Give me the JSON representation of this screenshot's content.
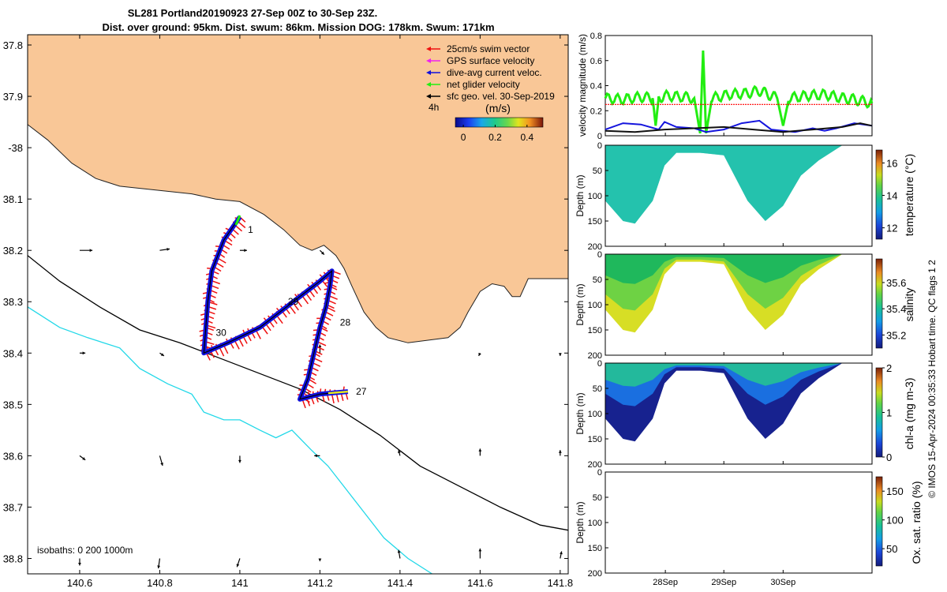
{
  "title": {
    "line1": "SL281 Portland20190923 27-Sep 00Z to 30-Sep 23Z.",
    "line2": "Dist. over ground: 95km. Dist. swum: 86km. Mission DOG: 178km. Swum: 171km"
  },
  "copyright": "© IMOS 15-Apr-2024 00:35:33 Hobart time. QC flags 1  2",
  "colors": {
    "land": "#f9c797",
    "coast": "#222222",
    "isobath_200": "#000000",
    "isobath_1000": "#22d8e8",
    "glider_red": "#ee1111",
    "glider_blue": "#1010dd",
    "glider_green": "#22ee11",
    "vmag_black": "#111111",
    "vmag_blue": "#1515dd",
    "vmag_red": "#ff0000"
  },
  "chart_data": [
    {
      "type": "map",
      "name": "glider track map",
      "xlim": [
        140.47,
        141.82
      ],
      "ylim": [
        -38.83,
        -37.78
      ],
      "yaxis_reversed_labels": true,
      "xticks": [
        140.6,
        140.8,
        141,
        141.2,
        141.4,
        141.6,
        141.8
      ],
      "xtick_labels": [
        "140.6",
        "140.8",
        "141",
        "141.2",
        "141.4",
        "141.6",
        "141.8"
      ],
      "yticks": [
        -37.8,
        -37.9,
        -38,
        -38.1,
        -38.2,
        -38.3,
        -38.4,
        -38.5,
        -38.6,
        -38.7,
        -38.8
      ],
      "ytick_labels": [
        "37.8",
        "37.9",
        "-38",
        "38.1",
        "38.2",
        "38.3",
        "38.4",
        "38.5",
        "38.6",
        "38.7",
        "38.8"
      ],
      "legend": {
        "position": "top-right",
        "items": [
          {
            "label": "25cm/s swim vector",
            "color": "#ee1111"
          },
          {
            "label": "GPS surface velocity",
            "color": "#ee22ee"
          },
          {
            "label": "dive-avg current veloc.",
            "color": "#1010dd"
          },
          {
            "label": "net glider velocity",
            "color": "#22ee11"
          },
          {
            "label": "sfc geo. vel. 30-Sep-2019",
            "color": "#000000"
          }
        ],
        "time_label": "4h",
        "colorbar_title": "(m/s)",
        "colorbar_ticks": [
          "0",
          "0.2",
          "0.4"
        ],
        "colorbar_range": [
          -0.05,
          0.5
        ]
      },
      "isobath_label": "isobaths: 0   200  1000m",
      "coastline": [
        [
          140.47,
          -37.955
        ],
        [
          140.52,
          -37.985
        ],
        [
          140.58,
          -38.03
        ],
        [
          140.64,
          -38.06
        ],
        [
          140.7,
          -38.075
        ],
        [
          140.76,
          -38.08
        ],
        [
          140.82,
          -38.085
        ],
        [
          140.88,
          -38.09
        ],
        [
          140.94,
          -38.1
        ],
        [
          141.0,
          -38.105
        ],
        [
          141.06,
          -38.13
        ],
        [
          141.11,
          -38.16
        ],
        [
          141.15,
          -38.19
        ],
        [
          141.18,
          -38.2
        ],
        [
          141.21,
          -38.19
        ],
        [
          141.24,
          -38.21
        ],
        [
          141.26,
          -38.235
        ],
        [
          141.28,
          -38.27
        ],
        [
          141.31,
          -38.32
        ],
        [
          141.34,
          -38.35
        ],
        [
          141.37,
          -38.37
        ],
        [
          141.42,
          -38.38
        ],
        [
          141.47,
          -38.375
        ],
        [
          141.52,
          -38.37
        ],
        [
          141.55,
          -38.35
        ],
        [
          141.57,
          -38.32
        ],
        [
          141.6,
          -38.28
        ],
        [
          141.63,
          -38.265
        ],
        [
          141.66,
          -38.27
        ],
        [
          141.68,
          -38.29
        ],
        [
          141.7,
          -38.29
        ],
        [
          141.72,
          -38.255
        ],
        [
          141.8,
          -38.255
        ],
        [
          141.82,
          -38.255
        ]
      ],
      "isobath_200": [
        [
          140.47,
          -38.21
        ],
        [
          140.55,
          -38.26
        ],
        [
          140.65,
          -38.31
        ],
        [
          140.75,
          -38.355
        ],
        [
          140.85,
          -38.38
        ],
        [
          140.95,
          -38.41
        ],
        [
          141.05,
          -38.44
        ],
        [
          141.15,
          -38.47
        ],
        [
          141.25,
          -38.51
        ],
        [
          141.35,
          -38.56
        ],
        [
          141.45,
          -38.62
        ],
        [
          141.55,
          -38.66
        ],
        [
          141.65,
          -38.7
        ],
        [
          141.75,
          -38.735
        ],
        [
          141.82,
          -38.745
        ]
      ],
      "isobath_1000": [
        [
          140.47,
          -38.31
        ],
        [
          140.55,
          -38.35
        ],
        [
          140.62,
          -38.37
        ],
        [
          140.7,
          -38.39
        ],
        [
          140.75,
          -38.43
        ],
        [
          140.82,
          -38.46
        ],
        [
          140.88,
          -38.48
        ],
        [
          140.91,
          -38.515
        ],
        [
          140.96,
          -38.53
        ],
        [
          141.0,
          -38.53
        ],
        [
          141.05,
          -38.55
        ],
        [
          141.09,
          -38.565
        ],
        [
          141.13,
          -38.55
        ],
        [
          141.18,
          -38.59
        ],
        [
          141.22,
          -38.62
        ],
        [
          141.26,
          -38.66
        ],
        [
          141.31,
          -38.71
        ],
        [
          141.36,
          -38.76
        ],
        [
          141.42,
          -38.8
        ],
        [
          141.48,
          -38.83
        ]
      ],
      "glider_track": [
        [
          141.0,
          -38.135
        ],
        [
          140.96,
          -38.18
        ],
        [
          140.93,
          -38.24
        ],
        [
          140.92,
          -38.3
        ],
        [
          140.915,
          -38.35
        ],
        [
          140.91,
          -38.4
        ],
        [
          140.97,
          -38.38
        ],
        [
          141.05,
          -38.35
        ],
        [
          141.1,
          -38.32
        ],
        [
          141.15,
          -38.29
        ],
        [
          141.2,
          -38.26
        ],
        [
          141.23,
          -38.24
        ],
        [
          141.225,
          -38.27
        ],
        [
          141.215,
          -38.31
        ],
        [
          141.2,
          -38.35
        ],
        [
          141.185,
          -38.4
        ],
        [
          141.17,
          -38.45
        ],
        [
          141.15,
          -38.49
        ],
        [
          141.2,
          -38.48
        ],
        [
          141.27,
          -38.475
        ]
      ],
      "day_markers": [
        {
          "label": "1",
          "lon": 141.02,
          "lat": -38.16
        },
        {
          "label": "29",
          "lon": 141.12,
          "lat": -38.3
        },
        {
          "label": "30",
          "lon": 140.94,
          "lat": -38.36
        },
        {
          "label": "28",
          "lon": 141.25,
          "lat": -38.34
        },
        {
          "label": "27",
          "lon": 141.29,
          "lat": -38.475
        }
      ],
      "geo_velocity_arrows": [
        {
          "lon": 140.6,
          "lat": -38.2,
          "u": 0.09,
          "v": 0.0
        },
        {
          "lon": 140.8,
          "lat": -38.2,
          "u": 0.07,
          "v": 0.01
        },
        {
          "lon": 141.0,
          "lat": -38.2,
          "u": 0.05,
          "v": 0.0
        },
        {
          "lon": 141.2,
          "lat": -38.2,
          "u": 0.03,
          "v": -0.03
        },
        {
          "lon": 140.6,
          "lat": -38.4,
          "u": 0.04,
          "v": 0.0
        },
        {
          "lon": 140.8,
          "lat": -38.4,
          "u": 0.03,
          "v": -0.02
        },
        {
          "lon": 141.2,
          "lat": -38.4,
          "u": 0.0,
          "v": 0.06
        },
        {
          "lon": 141.6,
          "lat": -38.4,
          "u": -0.01,
          "v": -0.02
        },
        {
          "lon": 141.8,
          "lat": -38.4,
          "u": 0.0,
          "v": -0.02
        },
        {
          "lon": 140.6,
          "lat": -38.6,
          "u": 0.04,
          "v": -0.03
        },
        {
          "lon": 140.8,
          "lat": -38.6,
          "u": 0.02,
          "v": -0.07
        },
        {
          "lon": 141.0,
          "lat": -38.6,
          "u": 0.0,
          "v": -0.05
        },
        {
          "lon": 141.2,
          "lat": -38.6,
          "u": -0.04,
          "v": 0.0
        },
        {
          "lon": 141.4,
          "lat": -38.6,
          "u": -0.01,
          "v": 0.04
        },
        {
          "lon": 141.6,
          "lat": -38.6,
          "u": 0.0,
          "v": 0.05
        },
        {
          "lon": 141.8,
          "lat": -38.6,
          "u": 0.0,
          "v": 0.04
        },
        {
          "lon": 140.6,
          "lat": -38.8,
          "u": 0.0,
          "v": -0.05
        },
        {
          "lon": 140.8,
          "lat": -38.8,
          "u": -0.01,
          "v": -0.07
        },
        {
          "lon": 141.0,
          "lat": -38.8,
          "u": -0.02,
          "v": -0.06
        },
        {
          "lon": 141.2,
          "lat": -38.8,
          "u": 0.0,
          "v": -0.02
        },
        {
          "lon": 141.4,
          "lat": -38.8,
          "u": -0.01,
          "v": 0.06
        },
        {
          "lon": 141.6,
          "lat": -38.8,
          "u": 0.0,
          "v": 0.07
        },
        {
          "lon": 141.8,
          "lat": -38.8,
          "u": 0.01,
          "v": 0.05
        }
      ]
    },
    {
      "type": "line",
      "name": "velocity magnitude",
      "ylabel": "velocity magnitude (m/s)",
      "ylim": [
        0,
        0.8
      ],
      "yticks": [
        0,
        0.2,
        0.4,
        0.6,
        0.8
      ],
      "ytick_labels": [
        "0",
        "0.2",
        "0.4",
        "0.6",
        "0.8"
      ],
      "xlim": [
        0,
        4.5
      ],
      "grid": false,
      "series": [
        {
          "color": "#22ee11",
          "x": [
            0,
            0.3,
            0.6,
            0.8,
            0.85,
            0.9,
            1.0,
            1.3,
            1.5,
            1.6,
            1.65,
            1.7,
            1.8,
            2.1,
            2.4,
            2.6,
            2.7,
            2.9,
            3.0,
            3.1,
            3.4,
            3.7,
            4.0,
            4.2,
            4.3,
            4.5
          ],
          "y": [
            0.3,
            0.29,
            0.31,
            0.3,
            0.08,
            0.3,
            0.32,
            0.31,
            0.3,
            0.02,
            0.68,
            0.02,
            0.3,
            0.33,
            0.34,
            0.36,
            0.34,
            0.3,
            0.08,
            0.3,
            0.32,
            0.33,
            0.3,
            0.29,
            0.28,
            0.26
          ]
        },
        {
          "color": "#ff0000",
          "x": [
            0,
            4.5
          ],
          "y": [
            0.25,
            0.25
          ]
        },
        {
          "color": "#1515dd",
          "x": [
            0,
            0.3,
            0.6,
            0.9,
            1.0,
            1.2,
            1.5,
            1.7,
            2.0,
            2.3,
            2.6,
            2.8,
            3.0,
            3.2,
            3.5,
            3.7,
            3.9,
            4.2,
            4.5
          ],
          "y": [
            0.05,
            0.1,
            0.09,
            0.05,
            0.11,
            0.07,
            0.06,
            0.03,
            0.05,
            0.1,
            0.12,
            0.05,
            0.04,
            0.03,
            0.06,
            0.04,
            0.06,
            0.1,
            0.08
          ]
        },
        {
          "color": "#111111",
          "x": [
            0,
            0.5,
            1.0,
            1.5,
            2.0,
            2.5,
            3.0,
            3.5,
            4.0,
            4.3,
            4.5
          ],
          "y": [
            0.04,
            0.03,
            0.05,
            0.06,
            0.07,
            0.05,
            0.03,
            0.05,
            0.07,
            0.1,
            0.08
          ]
        }
      ]
    },
    {
      "type": "heatmap",
      "name": "temperature",
      "ylabel": "Depth (m)",
      "colorbar_label": "temperature (°C)",
      "ylim": [
        0,
        200
      ],
      "yticks": [
        0,
        50,
        100,
        150,
        200
      ],
      "colorbar_ticks": [
        "12",
        "14",
        "16"
      ],
      "colorbar_range": [
        11.3,
        16.8
      ],
      "profile_depth": [
        [
          0,
          110
        ],
        [
          0.3,
          150
        ],
        [
          0.5,
          155
        ],
        [
          0.8,
          110
        ],
        [
          1.0,
          40
        ],
        [
          1.2,
          15
        ],
        [
          1.6,
          15
        ],
        [
          2.0,
          20
        ],
        [
          2.4,
          110
        ],
        [
          2.7,
          150
        ],
        [
          3.0,
          120
        ],
        [
          3.3,
          60
        ],
        [
          3.6,
          30
        ],
        [
          4.0,
          0
        ],
        [
          4.5,
          0
        ]
      ],
      "dominant_value": 14.1
    },
    {
      "type": "heatmap",
      "name": "salinity",
      "ylabel": "Depth (m)",
      "colorbar_label": "salinity",
      "ylim": [
        0,
        200
      ],
      "yticks": [
        0,
        50,
        100,
        150,
        200
      ],
      "colorbar_ticks": [
        "35.2",
        "35.4",
        "35.6"
      ],
      "colorbar_range": [
        35.1,
        35.78
      ]
    },
    {
      "type": "heatmap",
      "name": "chl-a",
      "ylabel": "Depth (m)",
      "colorbar_label": "chl-a (mg m-3)",
      "ylim": [
        0,
        200
      ],
      "yticks": [
        0,
        50,
        100,
        150,
        200
      ],
      "colorbar_ticks": [
        "0",
        "1",
        "2"
      ],
      "colorbar_range": [
        0,
        2
      ]
    },
    {
      "type": "heatmap",
      "name": "oxygen saturation",
      "ylabel": "Depth (m)",
      "colorbar_label": "Ox. sat. ratio (%)",
      "ylim": [
        0,
        200
      ],
      "yticks": [
        0,
        50,
        100,
        150,
        200
      ],
      "colorbar_ticks": [
        "50",
        "100",
        "150"
      ],
      "colorbar_range": [
        20,
        175
      ],
      "xticks_labels": [
        "28Sep",
        "29Sep",
        "30Sep"
      ],
      "empty": true
    }
  ],
  "panel_labels": {
    "depth_ticks": [
      "0",
      "50",
      "100",
      "150",
      "200"
    ],
    "time_ticks": [
      "28Sep",
      "29Sep",
      "30Sep"
    ]
  }
}
